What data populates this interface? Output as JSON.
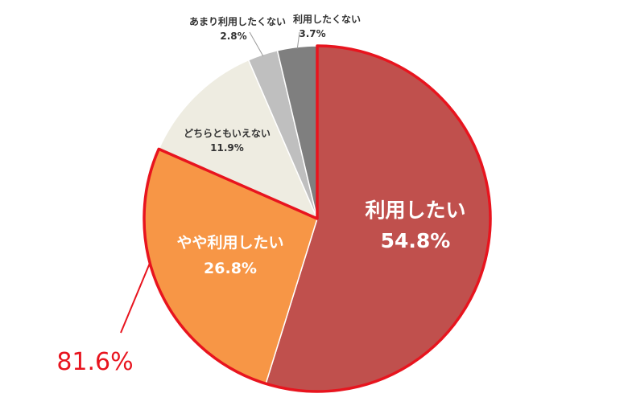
{
  "chart_data": {
    "type": "pie",
    "slices": [
      {
        "label": "利用したい",
        "value": 54.8,
        "value_text": "54.8%",
        "color": "#c0504d"
      },
      {
        "label": "やや利用したい",
        "value": 26.8,
        "value_text": "26.8%",
        "color": "#f79646"
      },
      {
        "label": "どちらともいえない",
        "value": 11.9,
        "value_text": "11.9%",
        "color": "#eeece1"
      },
      {
        "label": "あまり利用したくない",
        "value": 2.8,
        "value_text": "2.8%",
        "color": "#bfbfbf"
      },
      {
        "label": "利用したくない",
        "value": 3.7,
        "value_text": "3.7%",
        "color": "#7f7f7f"
      }
    ],
    "highlight": {
      "text": "81.6%",
      "color": "#e8141e",
      "slices": [
        0,
        1
      ]
    }
  }
}
